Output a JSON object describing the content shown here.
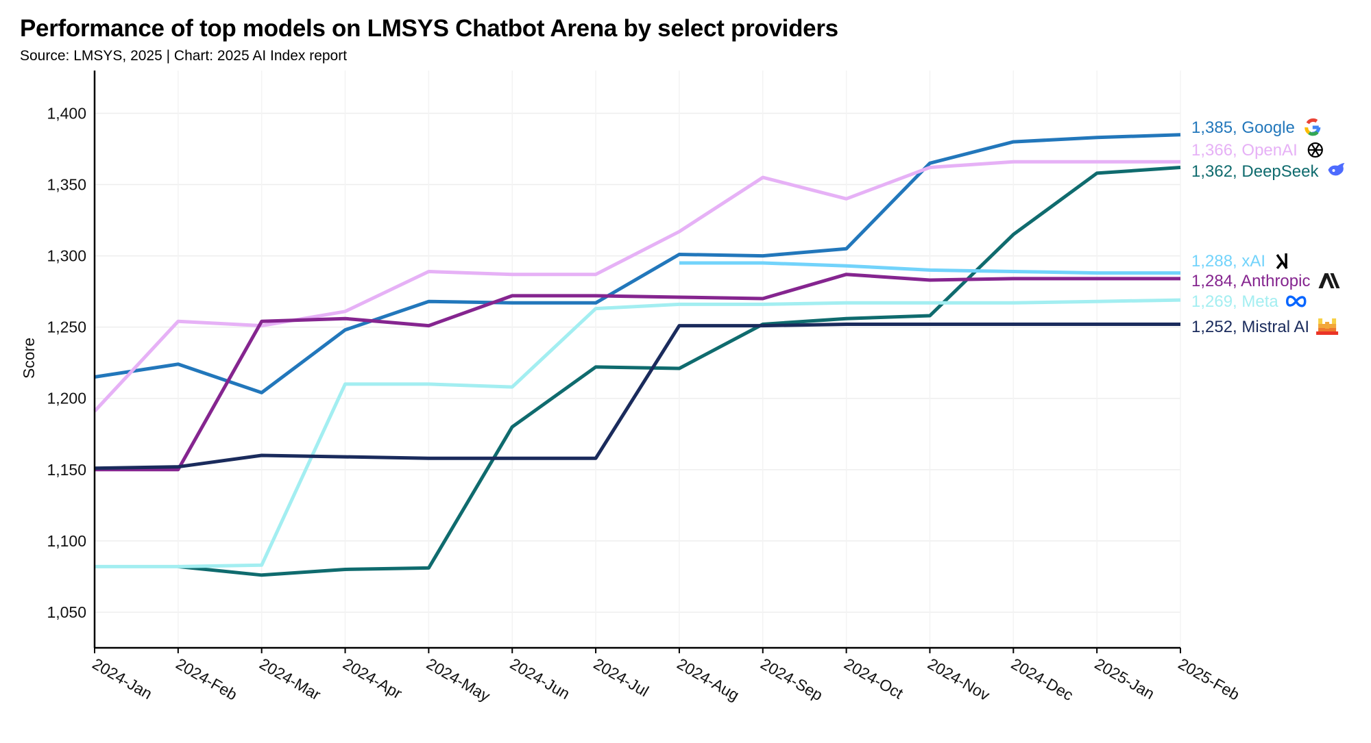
{
  "chart_data": {
    "type": "line",
    "title": "Performance of top models on LMSYS Chatbot Arena by select providers",
    "subtitle": "Source: LMSYS, 2025 | Chart: 2025 AI Index report",
    "xlabel": "",
    "ylabel": "Score",
    "ylim": [
      1025,
      1430
    ],
    "yticks": [
      1050,
      1100,
      1150,
      1200,
      1250,
      1300,
      1350,
      1400
    ],
    "ytick_labels": [
      "1,050",
      "1,100",
      "1,150",
      "1,200",
      "1,250",
      "1,300",
      "1,350",
      "1,400"
    ],
    "grid": true,
    "legend": "end-of-line labels, right",
    "categories": [
      "2024-Jan",
      "2024-Feb",
      "2024-Mar",
      "2024-Apr",
      "2024-May",
      "2024-Jun",
      "2024-Jul",
      "2024-Aug",
      "2024-Sep",
      "2024-Oct",
      "2024-Nov",
      "2024-Dec",
      "2025-Jan",
      "2025-Feb"
    ],
    "series": [
      {
        "name": "Google",
        "label": "1,385, Google",
        "icon": "google-icon",
        "color": "#2277bb",
        "values": [
          1215,
          1224,
          1204,
          1248,
          1268,
          1267,
          1267,
          1301,
          1300,
          1305,
          1365,
          1380,
          1383,
          1385
        ]
      },
      {
        "name": "OpenAI",
        "label": "1,366, OpenAI",
        "icon": "openai-icon",
        "color": "#e6b1f6",
        "values": [
          1191,
          1254,
          1251,
          1261,
          1289,
          1287,
          1287,
          1317,
          1355,
          1340,
          1362,
          1366,
          1366,
          1366
        ]
      },
      {
        "name": "DeepSeek",
        "label": "1,362, DeepSeek",
        "icon": "deepseek-whale-icon",
        "color": "#0f6b6e",
        "values": [
          null,
          1082,
          1076,
          1080,
          1081,
          1180,
          1222,
          1221,
          1252,
          1256,
          1258,
          1315,
          1358,
          1362
        ]
      },
      {
        "name": "xAI",
        "label": "1,288, xAI",
        "icon": "xai-icon",
        "color": "#72d3fb",
        "values": [
          null,
          null,
          null,
          null,
          null,
          null,
          null,
          1295,
          1295,
          1293,
          1290,
          1289,
          1288,
          1288
        ]
      },
      {
        "name": "Anthropic",
        "label": "1,284, Anthropic",
        "icon": "anthropic-icon",
        "color": "#85258f",
        "values": [
          1150,
          1150,
          1254,
          1256,
          1251,
          1272,
          1272,
          1271,
          1270,
          1287,
          1283,
          1284,
          1284,
          1284
        ]
      },
      {
        "name": "Meta",
        "label": "1,269, Meta",
        "icon": "meta-icon",
        "color": "#a3eef1",
        "values": [
          1082,
          1082,
          1083,
          1210,
          1210,
          1208,
          1263,
          1266,
          1266,
          1267,
          1267,
          1267,
          1268,
          1269
        ]
      },
      {
        "name": "Mistral AI",
        "label": "1,252, Mistral AI",
        "icon": "mistral-icon",
        "color": "#1a2b5c",
        "values": [
          1151,
          1152,
          1160,
          1159,
          1158,
          1158,
          1158,
          1251,
          1251,
          1252,
          1252,
          1252,
          1252,
          1252
        ]
      }
    ]
  }
}
